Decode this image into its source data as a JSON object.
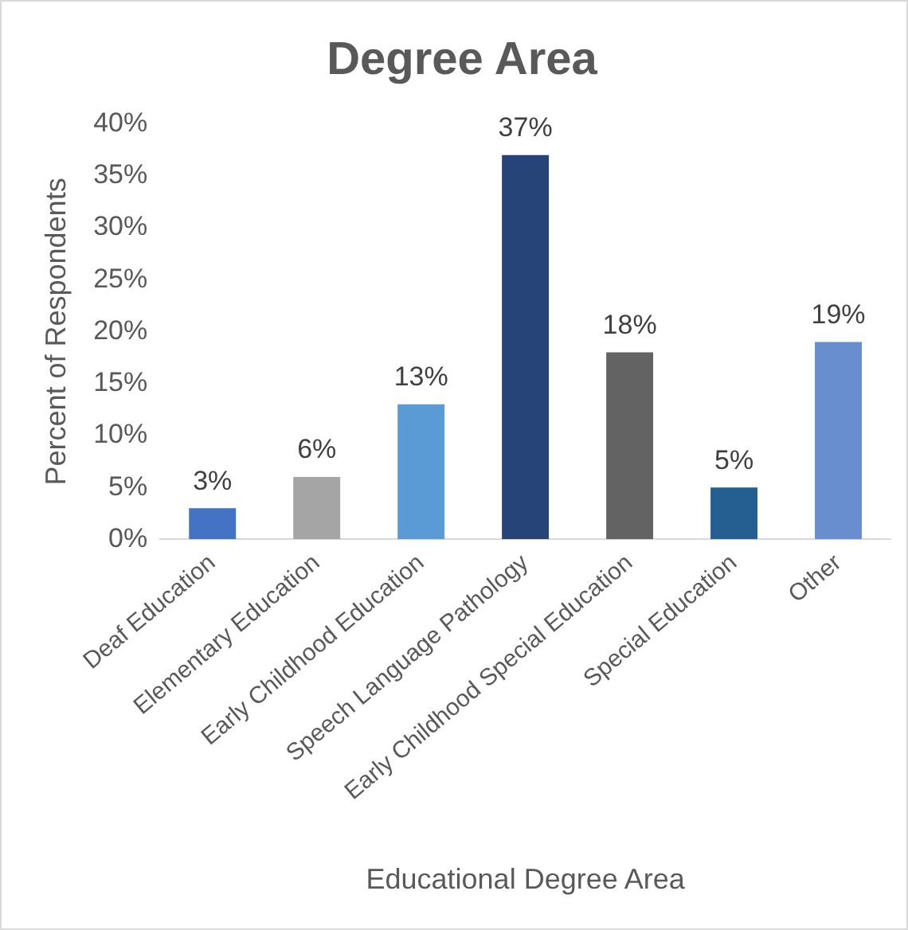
{
  "chart_data": {
    "type": "bar",
    "title": "Degree Area",
    "xlabel": "Educational Degree Area",
    "ylabel": "Percent of Respondents",
    "categories": [
      "Deaf Education",
      "Elementary Education",
      "Early Childhood Education",
      "Speech Language Pathology",
      "Early Childhood Special Education",
      "Special Education",
      "Other"
    ],
    "values": [
      3,
      6,
      13,
      37,
      18,
      5,
      19
    ],
    "colors": [
      "#4472c4",
      "#a5a5a5",
      "#5b9bd5",
      "#264478",
      "#636363",
      "#255e91",
      "#698ed0"
    ],
    "value_labels": [
      "3%",
      "6%",
      "13%",
      "37%",
      "18%",
      "5%",
      "19%"
    ],
    "ylim": [
      0,
      40
    ],
    "yticks": [
      {
        "value": 0,
        "label": "0%"
      },
      {
        "value": 5,
        "label": "5%"
      },
      {
        "value": 10,
        "label": "10%"
      },
      {
        "value": 15,
        "label": "15%"
      },
      {
        "value": 20,
        "label": "20%"
      },
      {
        "value": 25,
        "label": "25%"
      },
      {
        "value": 30,
        "label": "30%"
      },
      {
        "value": 35,
        "label": "35%"
      },
      {
        "value": 40,
        "label": "40%"
      }
    ],
    "grid": false,
    "legend": false
  }
}
